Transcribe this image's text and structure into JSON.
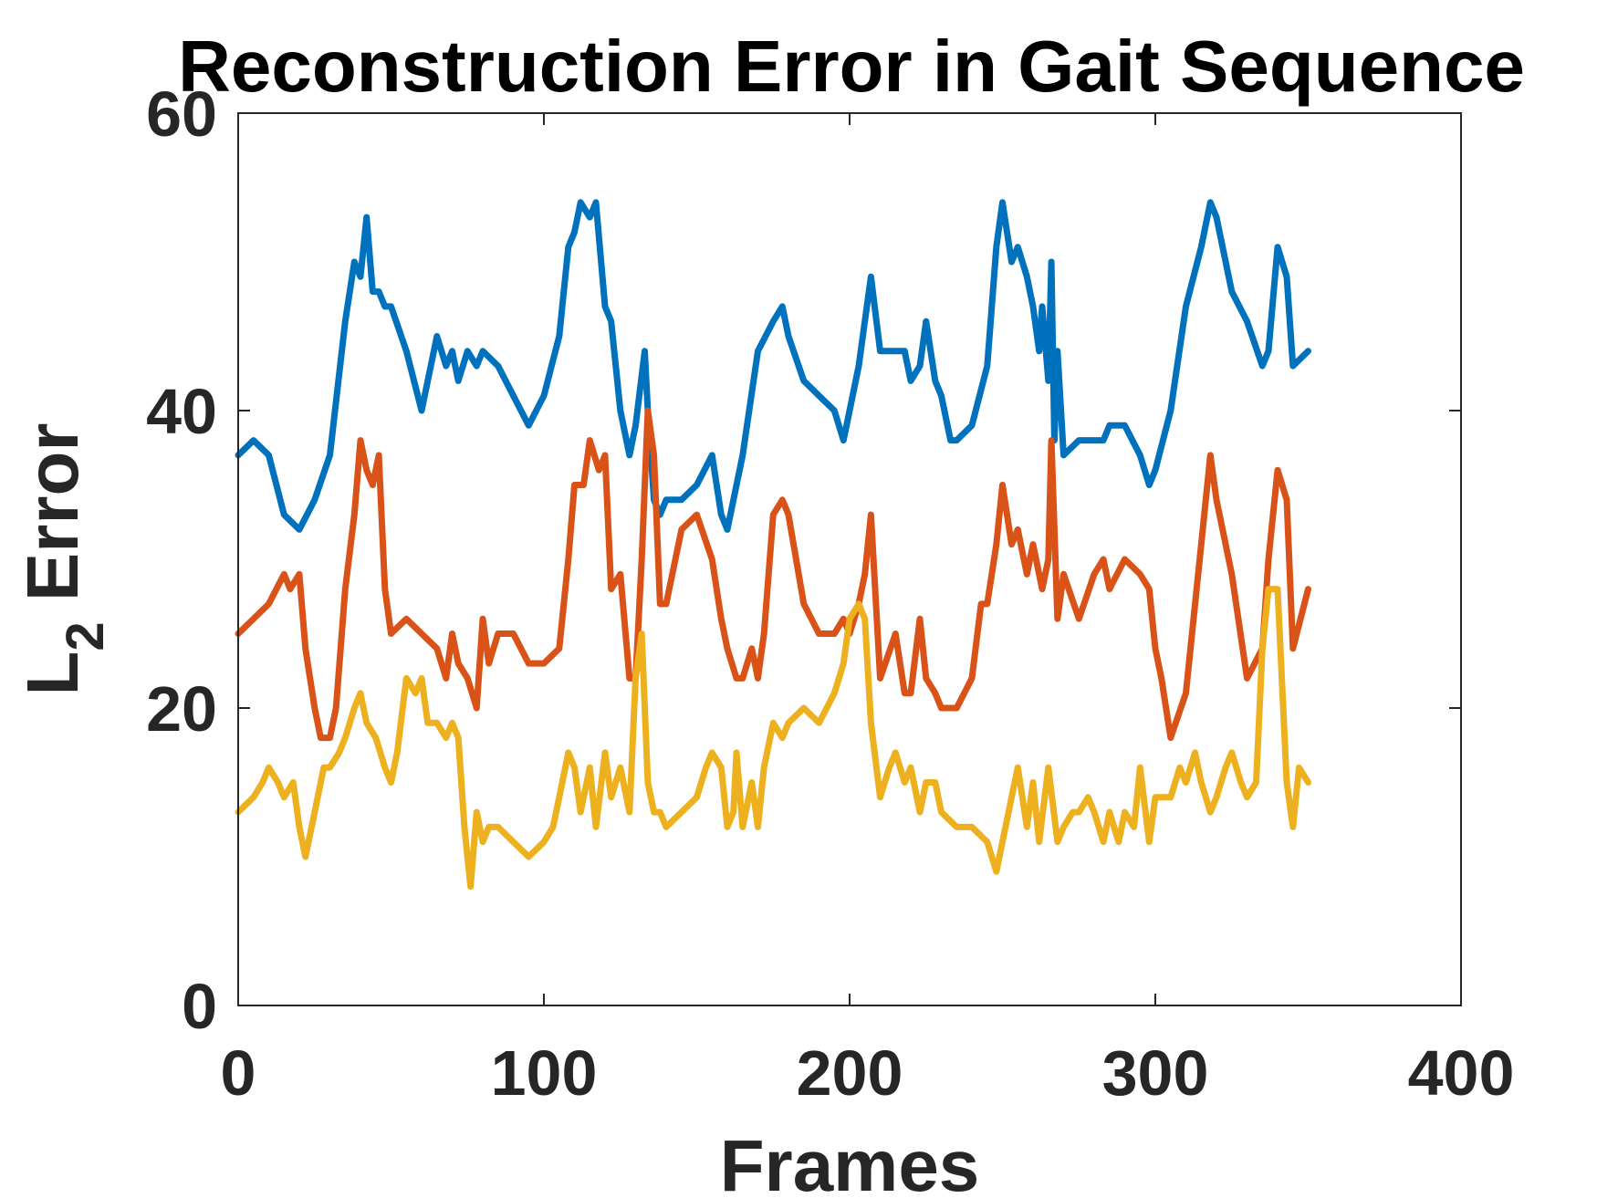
{
  "chart_data": {
    "type": "line",
    "title": "Reconstruction Error in Gait Sequence",
    "xlabel": "Frames",
    "ylabel_main": "L",
    "ylabel_sub": "2",
    "ylabel_rest": " Error",
    "xlim": [
      0,
      400
    ],
    "ylim": [
      0,
      60
    ],
    "xticks": [
      0,
      100,
      200,
      300,
      400
    ],
    "yticks": [
      0,
      20,
      40,
      60
    ],
    "grid": false,
    "series": [
      {
        "color": "#0072BD",
        "x": [
          0,
          5,
          10,
          15,
          20,
          25,
          30,
          35,
          38,
          40,
          42,
          44,
          46,
          48,
          50,
          55,
          60,
          65,
          68,
          70,
          72,
          75,
          78,
          80,
          85,
          90,
          95,
          100,
          105,
          108,
          110,
          112,
          115,
          117,
          120,
          122,
          125,
          128,
          130,
          133,
          134,
          136,
          138,
          140,
          145,
          150,
          155,
          158,
          160,
          165,
          170,
          175,
          178,
          180,
          185,
          190,
          195,
          198,
          200,
          203,
          205,
          207,
          210,
          215,
          218,
          220,
          223,
          225,
          228,
          230,
          233,
          235,
          240,
          245,
          248,
          250,
          253,
          255,
          258,
          260,
          262,
          263,
          265,
          266,
          267,
          268,
          270,
          275,
          280,
          283,
          285,
          290,
          295,
          298,
          300,
          305,
          310,
          315,
          318,
          320,
          325,
          330,
          335,
          337,
          340,
          343,
          345,
          350
        ],
        "y": [
          37,
          38,
          37,
          33,
          32,
          34,
          37,
          46,
          50,
          49,
          53,
          48,
          48,
          47,
          47,
          44,
          40,
          45,
          43,
          44,
          42,
          44,
          43,
          44,
          43,
          41,
          39,
          41,
          45,
          51,
          52,
          54,
          53,
          54,
          47,
          46,
          40,
          37,
          39,
          44,
          40,
          34,
          33,
          34,
          34,
          35,
          37,
          33,
          32,
          37,
          44,
          46,
          47,
          45,
          42,
          41,
          40,
          38,
          40,
          43,
          46,
          49,
          44,
          44,
          44,
          42,
          43,
          46,
          42,
          41,
          38,
          38,
          39,
          43,
          51,
          54,
          50,
          51,
          49,
          47,
          44,
          47,
          42,
          50,
          38,
          44,
          37,
          38,
          38,
          38,
          39,
          39,
          37,
          35,
          36,
          40,
          47,
          51,
          54,
          53,
          48,
          46,
          43,
          44,
          51,
          49,
          43,
          44
        ]
      },
      {
        "color": "#D95319",
        "x": [
          0,
          5,
          10,
          15,
          17,
          20,
          22,
          25,
          27,
          30,
          32,
          35,
          38,
          40,
          42,
          44,
          46,
          48,
          50,
          55,
          60,
          65,
          68,
          70,
          72,
          75,
          78,
          80,
          82,
          85,
          90,
          95,
          100,
          105,
          108,
          110,
          113,
          115,
          118,
          120,
          122,
          125,
          128,
          130,
          132,
          134,
          136,
          138,
          140,
          145,
          150,
          155,
          158,
          160,
          163,
          165,
          168,
          170,
          172,
          175,
          178,
          180,
          185,
          190,
          195,
          198,
          200,
          203,
          205,
          207,
          210,
          215,
          218,
          220,
          223,
          225,
          228,
          230,
          235,
          240,
          243,
          245,
          248,
          250,
          253,
          255,
          258,
          260,
          263,
          265,
          266,
          268,
          270,
          275,
          280,
          283,
          285,
          290,
          295,
          298,
          300,
          302,
          305,
          310,
          315,
          318,
          320,
          325,
          330,
          335,
          337,
          340,
          343,
          345,
          350
        ],
        "y": [
          25,
          26,
          27,
          29,
          28,
          29,
          24,
          20,
          18,
          18,
          20,
          28,
          33,
          38,
          36,
          35,
          37,
          28,
          25,
          26,
          25,
          24,
          22,
          25,
          23,
          22,
          20,
          26,
          23,
          25,
          25,
          23,
          23,
          24,
          30,
          35,
          35,
          38,
          36,
          37,
          28,
          29,
          22,
          22,
          30,
          40,
          37,
          27,
          27,
          32,
          33,
          30,
          26,
          24,
          22,
          22,
          24,
          22,
          25,
          33,
          34,
          33,
          27,
          25,
          25,
          26,
          25,
          27,
          29,
          33,
          22,
          25,
          21,
          21,
          26,
          22,
          21,
          20,
          20,
          22,
          27,
          27,
          31,
          35,
          31,
          32,
          29,
          31,
          28,
          30,
          38,
          26,
          29,
          26,
          29,
          30,
          28,
          30,
          29,
          28,
          24,
          22,
          18,
          21,
          31,
          37,
          34,
          29,
          22,
          24,
          30,
          36,
          34,
          24,
          28
        ]
      },
      {
        "color": "#EDB120",
        "x": [
          0,
          5,
          8,
          10,
          13,
          15,
          18,
          20,
          22,
          25,
          28,
          30,
          33,
          35,
          38,
          40,
          42,
          45,
          48,
          50,
          52,
          55,
          58,
          60,
          62,
          65,
          68,
          70,
          72,
          74,
          76,
          78,
          80,
          82,
          85,
          90,
          95,
          100,
          103,
          105,
          108,
          110,
          112,
          115,
          117,
          120,
          122,
          125,
          128,
          130,
          132,
          134,
          136,
          138,
          140,
          145,
          150,
          153,
          155,
          158,
          160,
          162,
          163,
          165,
          168,
          170,
          172,
          175,
          178,
          180,
          185,
          190,
          195,
          198,
          200,
          203,
          205,
          207,
          210,
          213,
          215,
          218,
          220,
          223,
          225,
          228,
          230,
          235,
          240,
          245,
          248,
          250,
          253,
          255,
          258,
          260,
          262,
          265,
          268,
          270,
          273,
          275,
          278,
          280,
          283,
          285,
          288,
          290,
          293,
          295,
          298,
          300,
          303,
          305,
          308,
          310,
          313,
          315,
          318,
          320,
          323,
          325,
          328,
          330,
          333,
          335,
          337,
          340,
          343,
          345,
          347,
          350
        ],
        "y": [
          13,
          14,
          15,
          16,
          15,
          14,
          15,
          12,
          10,
          13,
          16,
          16,
          17,
          18,
          20,
          21,
          19,
          18,
          16,
          15,
          17,
          22,
          21,
          22,
          19,
          19,
          18,
          19,
          18,
          12,
          8,
          13,
          11,
          12,
          12,
          11,
          10,
          11,
          12,
          14,
          17,
          16,
          13,
          16,
          12,
          17,
          14,
          16,
          13,
          22,
          25,
          15,
          13,
          13,
          12,
          13,
          14,
          16,
          17,
          16,
          12,
          13,
          17,
          12,
          15,
          12,
          16,
          19,
          18,
          19,
          20,
          19,
          21,
          23,
          26,
          27,
          26,
          19,
          14,
          16,
          17,
          15,
          16,
          13,
          15,
          15,
          13,
          12,
          12,
          11,
          9,
          11,
          14,
          16,
          12,
          15,
          11,
          16,
          11,
          12,
          13,
          13,
          14,
          13,
          11,
          13,
          11,
          13,
          12,
          16,
          11,
          14,
          14,
          14,
          16,
          15,
          17,
          15,
          13,
          14,
          16,
          17,
          15,
          14,
          15,
          24,
          28,
          28,
          15,
          12,
          16,
          15
        ]
      }
    ]
  }
}
